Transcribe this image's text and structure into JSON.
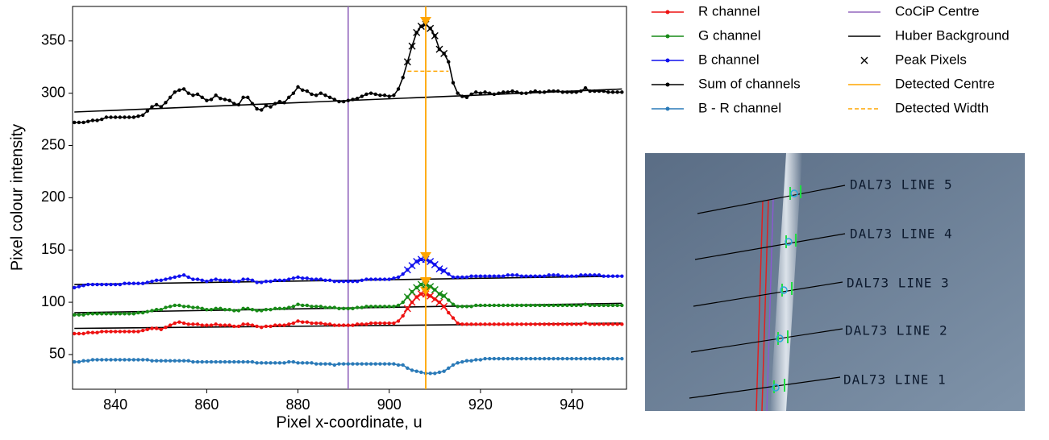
{
  "chart_data": {
    "type": "line",
    "xlabel": "Pixel x-coordinate, u",
    "ylabel": "Pixel colour intensity",
    "xlim": [
      830.6,
      952
    ],
    "ylim": [
      16.8,
      383
    ],
    "xticks": [
      840,
      860,
      880,
      900,
      920,
      940
    ],
    "yticks": [
      50,
      100,
      150,
      200,
      250,
      300,
      350
    ],
    "x": [
      831,
      832,
      833,
      834,
      835,
      836,
      837,
      838,
      839,
      840,
      841,
      842,
      843,
      844,
      845,
      846,
      847,
      848,
      849,
      850,
      851,
      852,
      853,
      854,
      855,
      856,
      857,
      858,
      859,
      860,
      861,
      862,
      863,
      864,
      865,
      866,
      867,
      868,
      869,
      870,
      871,
      872,
      873,
      874,
      875,
      876,
      877,
      878,
      879,
      880,
      881,
      882,
      883,
      884,
      885,
      886,
      887,
      888,
      889,
      890,
      891,
      892,
      893,
      894,
      895,
      896,
      897,
      898,
      899,
      900,
      901,
      902,
      903,
      904,
      905,
      906,
      907,
      908,
      909,
      910,
      911,
      912,
      913,
      914,
      915,
      916,
      917,
      918,
      919,
      920,
      921,
      922,
      923,
      924,
      925,
      926,
      927,
      928,
      929,
      930,
      931,
      932,
      933,
      934,
      935,
      936,
      937,
      938,
      939,
      940,
      941,
      942,
      943,
      944,
      945,
      946,
      947,
      948,
      949,
      950,
      951
    ],
    "series": [
      {
        "name": "R channel",
        "color": "#ee1111",
        "values": [
          70,
          70,
          70,
          71,
          71,
          71,
          72,
          72,
          72,
          72,
          72,
          72,
          72,
          72,
          72,
          73,
          74,
          75,
          75,
          74,
          76,
          78,
          80,
          81,
          80,
          79,
          79,
          79,
          78,
          78,
          78,
          79,
          78,
          78,
          78,
          77,
          77,
          79,
          79,
          78,
          77,
          76,
          77,
          77,
          78,
          78,
          78,
          79,
          80,
          82,
          81,
          81,
          80,
          80,
          80,
          79,
          79,
          78,
          78,
          78,
          78,
          78,
          79,
          79,
          79,
          80,
          80,
          80,
          80,
          80,
          80,
          82,
          87,
          94,
          100,
          105,
          108,
          108,
          106,
          103,
          100,
          96,
          90,
          85,
          80,
          79,
          79,
          79,
          79,
          79,
          79,
          79,
          79,
          79,
          79,
          79,
          79,
          79,
          79,
          79,
          79,
          79,
          79,
          79,
          79,
          79,
          79,
          79,
          79,
          79,
          79,
          79,
          80,
          79,
          79,
          79,
          79,
          79,
          79,
          79,
          79
        ]
      },
      {
        "name": "G channel",
        "color": "#178a17",
        "values": [
          88,
          88,
          88,
          89,
          89,
          89,
          89,
          89,
          89,
          89,
          89,
          89,
          89,
          89,
          90,
          90,
          91,
          92,
          93,
          93,
          95,
          96,
          97,
          97,
          96,
          96,
          95,
          95,
          94,
          93,
          93,
          94,
          94,
          93,
          93,
          92,
          92,
          94,
          94,
          93,
          92,
          92,
          93,
          93,
          94,
          94,
          94,
          95,
          96,
          98,
          97,
          97,
          96,
          96,
          96,
          95,
          95,
          95,
          94,
          94,
          94,
          94,
          95,
          95,
          96,
          96,
          96,
          96,
          96,
          96,
          96,
          97,
          100,
          105,
          110,
          114,
          117,
          117,
          115,
          112,
          108,
          106,
          102,
          98,
          96,
          96,
          96,
          96,
          97,
          97,
          97,
          97,
          97,
          97,
          97,
          97,
          97,
          97,
          97,
          97,
          97,
          97,
          97,
          97,
          97,
          97,
          97,
          97,
          97,
          97,
          97,
          97,
          98,
          97,
          97,
          97,
          97,
          97,
          97,
          97,
          97
        ]
      },
      {
        "name": "B channel",
        "color": "#1010ee",
        "values": [
          114,
          115,
          116,
          117,
          117,
          117,
          117,
          117,
          117,
          117,
          117,
          118,
          118,
          118,
          118,
          118,
          119,
          120,
          121,
          121,
          122,
          123,
          124,
          125,
          126,
          124,
          122,
          122,
          121,
          120,
          121,
          122,
          121,
          121,
          121,
          120,
          120,
          122,
          122,
          121,
          119,
          119,
          120,
          120,
          121,
          121,
          121,
          122,
          123,
          124,
          123,
          123,
          122,
          122,
          122,
          121,
          121,
          120,
          120,
          120,
          120,
          120,
          120,
          121,
          122,
          122,
          122,
          122,
          122,
          122,
          123,
          124,
          127,
          131,
          135,
          139,
          141,
          141,
          139,
          136,
          132,
          130,
          127,
          124,
          124,
          124,
          124,
          125,
          125,
          125,
          125,
          125,
          125,
          125,
          125,
          126,
          126,
          126,
          125,
          125,
          125,
          125,
          125,
          125,
          126,
          126,
          126,
          125,
          125,
          125,
          125,
          126,
          126,
          126,
          126,
          126,
          125,
          125,
          125,
          125,
          125
        ]
      },
      {
        "name": "Sum of channels",
        "color": "#000000",
        "values": [
          272,
          272,
          272,
          273,
          274,
          274,
          275,
          277,
          277,
          277,
          277,
          277,
          277,
          277,
          278,
          279,
          283,
          287,
          289,
          287,
          291,
          296,
          301,
          303,
          304,
          300,
          298,
          299,
          296,
          293,
          294,
          298,
          295,
          294,
          293,
          290,
          289,
          296,
          296,
          290,
          285,
          284,
          288,
          287,
          290,
          292,
          291,
          296,
          300,
          306,
          303,
          302,
          299,
          298,
          300,
          298,
          296,
          294,
          292,
          292,
          293,
          294,
          295,
          297,
          299,
          300,
          299,
          298,
          298,
          297,
          298,
          304,
          315,
          330,
          345,
          358,
          364,
          366,
          362,
          355,
          342,
          338,
          330,
          310,
          300,
          297,
          296,
          299,
          301,
          300,
          301,
          300,
          299,
          300,
          301,
          301,
          302,
          301,
          300,
          300,
          301,
          302,
          301,
          301,
          302,
          302,
          302,
          301,
          301,
          301,
          301,
          302,
          305,
          302,
          302,
          302,
          302,
          301,
          301,
          301,
          301
        ]
      },
      {
        "name": "B - R channel",
        "color": "#2a7ab8",
        "values": [
          43,
          43,
          44,
          44,
          45,
          45,
          45,
          45,
          45,
          45,
          45,
          45,
          45,
          45,
          45,
          45,
          45,
          44,
          44,
          44,
          44,
          44,
          44,
          44,
          44,
          44,
          43,
          43,
          43,
          43,
          43,
          43,
          43,
          43,
          43,
          43,
          43,
          43,
          43,
          43,
          42,
          42,
          42,
          42,
          42,
          42,
          42,
          43,
          43,
          42,
          42,
          42,
          42,
          41,
          41,
          41,
          41,
          40,
          41,
          41,
          41,
          41,
          41,
          41,
          41,
          41,
          41,
          41,
          41,
          41,
          41,
          40,
          40,
          37,
          35,
          34,
          33,
          32,
          32,
          32,
          33,
          34,
          37,
          40,
          42,
          43,
          44,
          44,
          45,
          45,
          46,
          46,
          46,
          46,
          46,
          46,
          46,
          46,
          46,
          46,
          46,
          46,
          46,
          46,
          46,
          46,
          46,
          46,
          46,
          46,
          46,
          46,
          46,
          46,
          46,
          46,
          46,
          46,
          46,
          46,
          46
        ]
      }
    ],
    "cocip_centre": {
      "name": "CoCiP Centre",
      "color": "#9467bd",
      "x": 891
    },
    "background": {
      "name": "Huber Background",
      "color": "#000000",
      "x": [
        831,
        951
      ],
      "lines": [
        [
          75,
          80
        ],
        [
          90,
          99
        ],
        [
          117,
          125
        ],
        [
          282,
          304
        ]
      ]
    },
    "peak_pixels": {
      "name": "Peak Pixels",
      "x": [
        904,
        905,
        906,
        907,
        908,
        909,
        910,
        911,
        912
      ]
    },
    "detected_centre": {
      "name": "Detected Centre",
      "color": "#ffa500",
      "x": 908
    },
    "detected_width": {
      "name": "Detected Width",
      "color": "#ffa500",
      "y": 321,
      "x": [
        904,
        913
      ]
    }
  },
  "inset": {
    "labels": [
      "DAL73 LINE 5",
      "DAL73 LINE 4",
      "DAL73 LINE 3",
      "DAL73 LINE 2",
      "DAL73 LINE 1"
    ]
  }
}
